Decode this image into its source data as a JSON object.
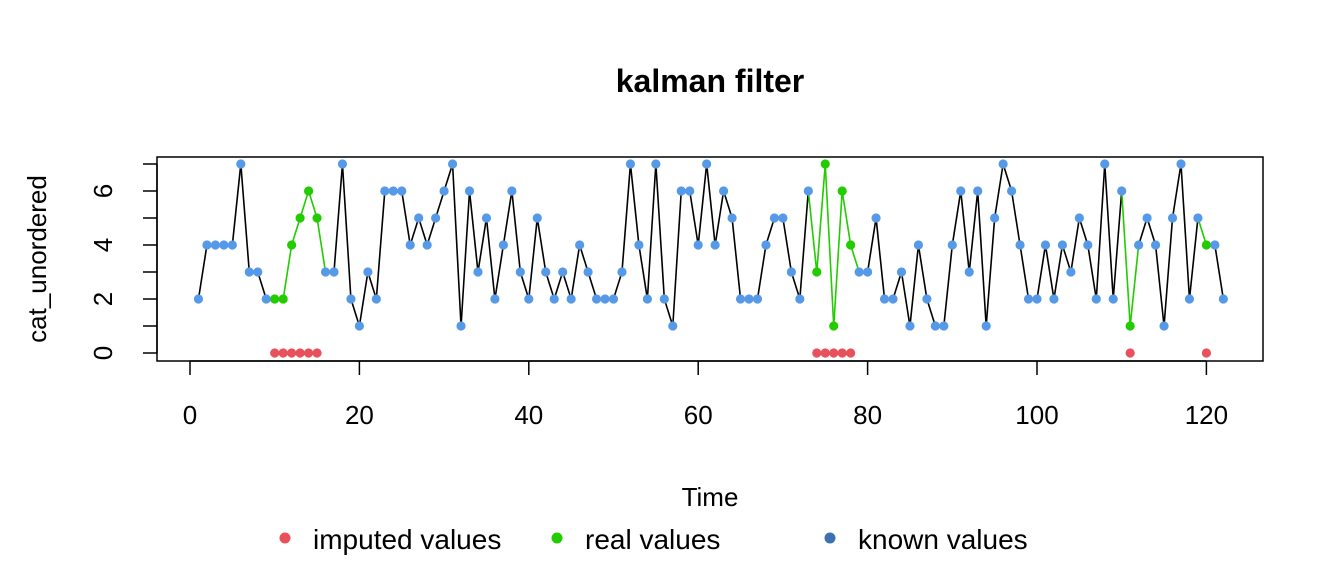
{
  "chart_data": {
    "type": "line",
    "title": "kalman filter",
    "xlabel": "Time",
    "ylabel": "cat_unordered",
    "xlim": [
      0,
      122
    ],
    "ylim": [
      0,
      7
    ],
    "x_ticks": [
      0,
      20,
      40,
      60,
      80,
      100,
      120
    ],
    "y_ticks": [
      0,
      2,
      4,
      6
    ],
    "y_minor_ticks": [
      1,
      3,
      5,
      7
    ],
    "legend_position": "bottom",
    "colors": {
      "imputed": "#E8505B",
      "real": "#22CC00",
      "known": "#5599E8",
      "known_legend": "#3D70B0",
      "imputed_line": "#22CC00",
      "known_line": "#000000"
    },
    "legend": [
      {
        "key": "imputed",
        "label": "imputed values"
      },
      {
        "key": "real",
        "label": "real values"
      },
      {
        "key": "known",
        "label": "known values"
      }
    ],
    "series": [
      {
        "name": "known values",
        "x": [
          1,
          2,
          3,
          4,
          5,
          6,
          7,
          8,
          9,
          16,
          17,
          18,
          19,
          20,
          21,
          22,
          23,
          24,
          25,
          26,
          27,
          28,
          29,
          30,
          31,
          32,
          33,
          34,
          35,
          36,
          37,
          38,
          39,
          40,
          41,
          42,
          43,
          44,
          45,
          46,
          47,
          48,
          49,
          50,
          51,
          52,
          53,
          54,
          55,
          56,
          57,
          58,
          59,
          60,
          61,
          62,
          63,
          64,
          65,
          66,
          67,
          68,
          69,
          70,
          71,
          72,
          73,
          79,
          80,
          81,
          82,
          83,
          84,
          85,
          86,
          87,
          88,
          89,
          90,
          91,
          92,
          93,
          94,
          95,
          96,
          97,
          98,
          99,
          100,
          101,
          102,
          103,
          104,
          105,
          106,
          107,
          108,
          109,
          110,
          112,
          113,
          114,
          115,
          116,
          117,
          118,
          119,
          121,
          122
        ],
        "values": [
          2,
          4,
          4,
          4,
          4,
          7,
          3,
          3,
          2,
          3,
          3,
          7,
          2,
          1,
          3,
          2,
          6,
          6,
          6,
          4,
          5,
          4,
          5,
          6,
          7,
          1,
          6,
          3,
          5,
          2,
          4,
          6,
          3,
          2,
          5,
          3,
          2,
          3,
          2,
          4,
          3,
          2,
          2,
          2,
          3,
          7,
          4,
          2,
          7,
          2,
          1,
          6,
          6,
          4,
          7,
          4,
          6,
          5,
          2,
          2,
          2,
          4,
          5,
          5,
          3,
          2,
          6,
          3,
          3,
          5,
          2,
          2,
          3,
          1,
          4,
          2,
          1,
          1,
          4,
          6,
          3,
          6,
          1,
          5,
          7,
          6,
          4,
          2,
          2,
          4,
          2,
          4,
          3,
          5,
          4,
          2,
          7,
          2,
          6,
          4,
          5,
          4,
          1,
          5,
          7,
          2,
          5,
          4,
          2
        ]
      },
      {
        "name": "real values",
        "x": [
          10,
          11,
          12,
          13,
          14,
          15,
          74,
          75,
          76,
          77,
          78,
          111,
          120
        ],
        "values": [
          2,
          2,
          4,
          5,
          6,
          5,
          3,
          7,
          1,
          6,
          4,
          1,
          4
        ]
      },
      {
        "name": "imputed values",
        "x": [
          10,
          11,
          12,
          13,
          14,
          15,
          74,
          75,
          76,
          77,
          78,
          111,
          120
        ],
        "values": [
          0,
          0,
          0,
          0,
          0,
          0,
          0,
          0,
          0,
          0,
          0,
          0,
          0
        ]
      }
    ]
  }
}
